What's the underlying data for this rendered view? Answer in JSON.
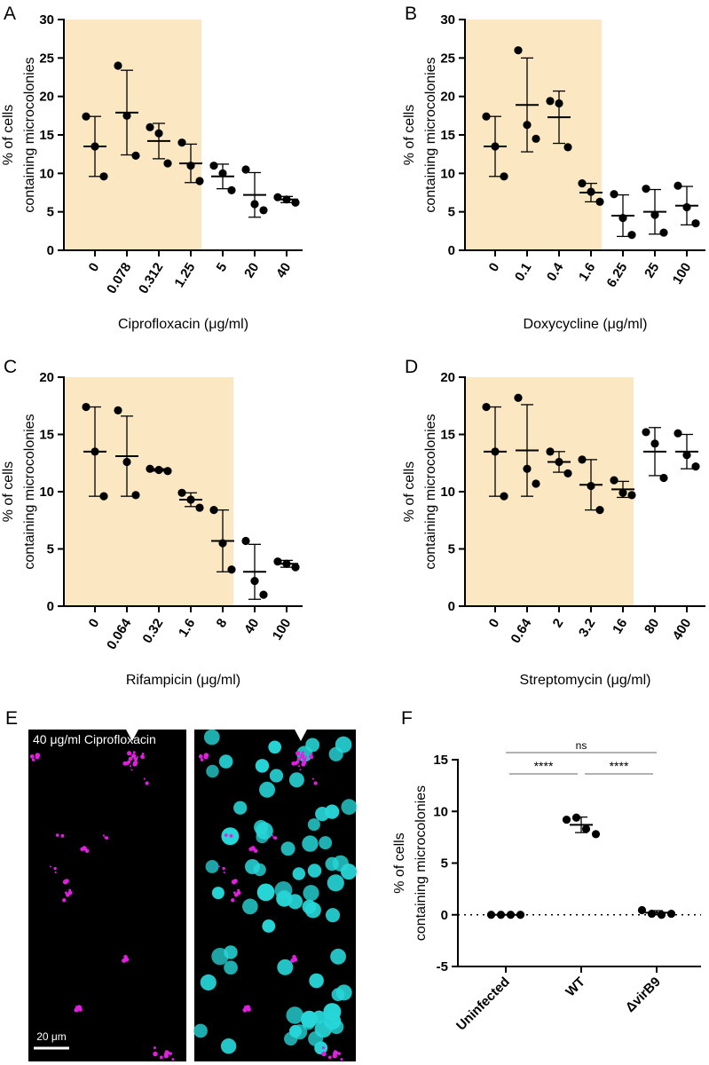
{
  "chart_data": [
    {
      "type": "dot",
      "label": "A",
      "xlabel": "Ciprofloxacin (μg/ml)",
      "ylabel": [
        "% of cells",
        "containing microcolonies"
      ],
      "categories": [
        "0",
        "0.078",
        "0.312",
        "1.25",
        "5",
        "20",
        "40"
      ],
      "points": [
        [
          17.4,
          13.5,
          9.6
        ],
        [
          24.0,
          17.5,
          12.3
        ],
        [
          16.0,
          15.2,
          11.3
        ],
        [
          14.0,
          11.0,
          9.0
        ],
        [
          11.0,
          10.0,
          7.8
        ],
        [
          10.5,
          6.0,
          5.2
        ],
        [
          6.9,
          6.6,
          6.2
        ]
      ],
      "means": [
        13.5,
        17.9,
        14.2,
        11.3,
        9.6,
        7.2,
        6.6
      ],
      "sd": [
        3.9,
        5.5,
        2.3,
        2.5,
        1.6,
        2.9,
        0.4
      ],
      "ylim": [
        0,
        30
      ],
      "yticks": [
        0,
        5,
        10,
        15,
        20,
        25,
        30
      ],
      "shaded_categories": [
        "0",
        "0.078",
        "0.312",
        "1.25"
      ],
      "shade_color": "#fbe8c3",
      "color": "#000000"
    },
    {
      "type": "dot",
      "label": "B",
      "xlabel": "Doxycycline (μg/ml)",
      "ylabel": [
        "% of cells",
        "containing microcolonies"
      ],
      "categories": [
        "0",
        "0.1",
        "0.4",
        "1.6",
        "6.25",
        "25",
        "100"
      ],
      "points": [
        [
          17.4,
          13.5,
          9.6
        ],
        [
          26.0,
          16.3,
          14.5
        ],
        [
          19.4,
          19.1,
          13.4
        ],
        [
          8.7,
          7.6,
          6.3
        ],
        [
          7.3,
          4.2,
          2.0
        ],
        [
          8.0,
          4.6,
          2.3
        ],
        [
          8.4,
          5.6,
          3.5
        ]
      ],
      "means": [
        13.5,
        18.9,
        17.3,
        7.5,
        4.5,
        5.0,
        5.8
      ],
      "sd": [
        3.9,
        6.1,
        3.4,
        1.2,
        2.7,
        2.9,
        2.5
      ],
      "ylim": [
        0,
        30
      ],
      "yticks": [
        0,
        5,
        10,
        15,
        20,
        25,
        30
      ],
      "shaded_categories": [
        "0",
        "0.1",
        "0.4",
        "1.6"
      ],
      "shade_color": "#fbe8c3",
      "color": "#000000"
    },
    {
      "type": "dot",
      "label": "C",
      "xlabel": "Rifampicin (μg/ml)",
      "ylabel": [
        "% of cells",
        "containing microcolonies"
      ],
      "categories": [
        "0",
        "0.064",
        "0.32",
        "1.6",
        "8",
        "40",
        "100"
      ],
      "points": [
        [
          17.4,
          13.5,
          9.6
        ],
        [
          17.1,
          12.6,
          9.7
        ],
        [
          12.0,
          11.9,
          11.8
        ],
        [
          9.9,
          9.3,
          8.6
        ],
        [
          8.4,
          5.5,
          3.2
        ],
        [
          5.7,
          2.2,
          1.0
        ],
        [
          3.9,
          3.7,
          3.4
        ]
      ],
      "means": [
        13.5,
        13.1,
        11.9,
        9.3,
        5.7,
        3.0,
        3.7
      ],
      "sd": [
        3.9,
        3.5,
        0.1,
        0.6,
        2.7,
        2.4,
        0.3
      ],
      "ylim": [
        0,
        20
      ],
      "yticks": [
        0,
        5,
        10,
        15,
        20
      ],
      "shaded_categories": [
        "0",
        "0.064",
        "0.32",
        "1.6",
        "8"
      ],
      "shade_color": "#fbe8c3",
      "color": "#000000"
    },
    {
      "type": "dot",
      "label": "D",
      "xlabel": "Streptomycin (μg/ml)",
      "ylabel": [
        "% of cells",
        "containing microcolonies"
      ],
      "categories": [
        "0",
        "0.64",
        "2",
        "3.2",
        "16",
        "80",
        "400"
      ],
      "points": [
        [
          17.4,
          13.5,
          9.6
        ],
        [
          18.2,
          12.0,
          10.7
        ],
        [
          13.5,
          12.6,
          11.6
        ],
        [
          12.8,
          10.5,
          8.4
        ],
        [
          11.0,
          9.9,
          9.7
        ],
        [
          15.2,
          14.2,
          11.2
        ],
        [
          15.1,
          13.2,
          12.2
        ]
      ],
      "means": [
        13.5,
        13.6,
        12.6,
        10.6,
        10.2,
        13.5,
        13.5
      ],
      "sd": [
        3.9,
        4.0,
        0.9,
        2.2,
        0.7,
        2.1,
        1.5
      ],
      "ylim": [
        0,
        20
      ],
      "yticks": [
        0,
        5,
        10,
        15,
        20
      ],
      "shaded_categories": [
        "0",
        "0.64",
        "2",
        "3.2",
        "16"
      ],
      "shade_color": "#fbe8c3",
      "color": "#000000"
    },
    {
      "type": "dot",
      "label": "F",
      "ylabel": [
        "% of cells",
        "containing microcolonies"
      ],
      "categories": [
        "Uninfected",
        "WT",
        "ΔvirB9"
      ],
      "points": [
        [
          0,
          0,
          0,
          0
        ],
        [
          9.2,
          9.4,
          8.3,
          7.8
        ],
        [
          0.45,
          0.1,
          0,
          0.1
        ]
      ],
      "means": [
        0,
        8.7,
        0.2
      ],
      "sd": [
        0,
        0.75,
        0.2
      ],
      "ylim": [
        -5,
        15
      ],
      "yticks": [
        -5,
        0,
        5,
        10,
        15
      ],
      "reference_line": 0,
      "comparisons": [
        {
          "groups": [
            "Uninfected",
            "ΔvirB9"
          ],
          "label": "ns"
        },
        {
          "groups": [
            "Uninfected",
            "WT"
          ],
          "label": "****"
        },
        {
          "groups": [
            "WT",
            "ΔvirB9"
          ],
          "label": "****"
        }
      ],
      "color": "#000000"
    }
  ],
  "image_panel": {
    "label": "E",
    "caption": "40 μg/ml Ciprofloxacin",
    "scale_bar": "20 μm"
  }
}
